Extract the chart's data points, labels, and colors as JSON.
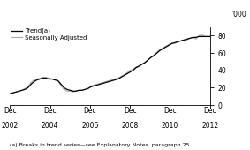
{
  "ylabel_right": "'000",
  "footnote": "(a) Breaks in trend series—see Explanatory Notes, paragraph 25.",
  "ylim": [
    0,
    90
  ],
  "yticks": [
    0,
    20,
    40,
    60,
    80
  ],
  "x_tick_labels": [
    [
      "Dec",
      "2002"
    ],
    [
      "Dec",
      "2004"
    ],
    [
      "Dec",
      "2006"
    ],
    [
      "Dec",
      "2008"
    ],
    [
      "Dec",
      "2010"
    ],
    [
      "Dec",
      "2012"
    ]
  ],
  "trend_color": "#000000",
  "seasonal_color": "#aaaaaa",
  "legend_items": [
    "Trend(a)",
    "Seasonally Adjusted"
  ],
  "trend": [
    [
      0,
      13
    ],
    [
      3,
      14
    ],
    [
      6,
      15
    ],
    [
      9,
      16
    ],
    [
      12,
      17
    ],
    [
      15,
      18
    ],
    [
      18,
      20
    ],
    [
      21,
      24
    ],
    [
      24,
      27
    ],
    [
      27,
      29
    ],
    [
      30,
      30
    ],
    [
      33,
      31
    ],
    [
      36,
      31
    ],
    [
      39,
      30
    ],
    [
      42,
      30
    ],
    [
      45,
      29
    ],
    [
      48,
      28
    ],
    [
      51,
      24
    ],
    [
      54,
      20
    ],
    [
      57,
      18
    ],
    [
      60,
      17
    ],
    [
      63,
      16
    ],
    [
      66,
      16
    ],
    [
      69,
      17
    ],
    [
      72,
      17
    ],
    [
      75,
      18
    ],
    [
      78,
      19
    ],
    [
      81,
      21
    ],
    [
      84,
      22
    ],
    [
      87,
      23
    ],
    [
      90,
      24
    ],
    [
      93,
      25
    ],
    [
      96,
      26
    ],
    [
      99,
      27
    ],
    [
      102,
      28
    ],
    [
      105,
      29
    ],
    [
      108,
      30
    ],
    [
      111,
      32
    ],
    [
      114,
      34
    ],
    [
      117,
      36
    ],
    [
      120,
      38
    ],
    [
      123,
      40
    ],
    [
      126,
      43
    ],
    [
      129,
      45
    ],
    [
      132,
      47
    ],
    [
      135,
      49
    ],
    [
      138,
      52
    ],
    [
      141,
      55
    ],
    [
      144,
      57
    ],
    [
      147,
      60
    ],
    [
      150,
      63
    ],
    [
      153,
      65
    ],
    [
      156,
      67
    ],
    [
      159,
      69
    ],
    [
      162,
      71
    ],
    [
      165,
      72
    ],
    [
      168,
      73
    ],
    [
      171,
      74
    ],
    [
      174,
      75
    ],
    [
      177,
      76
    ],
    [
      180,
      77
    ],
    [
      183,
      78
    ],
    [
      186,
      78
    ],
    [
      189,
      79
    ],
    [
      192,
      79
    ],
    [
      195,
      79
    ],
    [
      198,
      79
    ],
    [
      200,
      79
    ]
  ],
  "seasonal": [
    [
      0,
      13
    ],
    [
      3,
      14
    ],
    [
      6,
      15
    ],
    [
      9,
      16
    ],
    [
      12,
      17
    ],
    [
      15,
      19
    ],
    [
      18,
      21
    ],
    [
      21,
      26
    ],
    [
      24,
      29
    ],
    [
      27,
      30
    ],
    [
      30,
      31
    ],
    [
      33,
      32
    ],
    [
      36,
      32
    ],
    [
      39,
      31
    ],
    [
      42,
      30
    ],
    [
      45,
      29
    ],
    [
      48,
      28
    ],
    [
      51,
      22
    ],
    [
      54,
      18
    ],
    [
      57,
      16
    ],
    [
      60,
      16
    ],
    [
      63,
      15
    ],
    [
      66,
      16
    ],
    [
      69,
      17
    ],
    [
      72,
      17
    ],
    [
      75,
      18
    ],
    [
      78,
      19
    ],
    [
      81,
      22
    ],
    [
      84,
      23
    ],
    [
      87,
      24
    ],
    [
      90,
      25
    ],
    [
      93,
      26
    ],
    [
      96,
      27
    ],
    [
      99,
      28
    ],
    [
      102,
      29
    ],
    [
      105,
      30
    ],
    [
      108,
      31
    ],
    [
      111,
      33
    ],
    [
      114,
      35
    ],
    [
      117,
      37
    ],
    [
      120,
      40
    ],
    [
      123,
      41
    ],
    [
      126,
      44
    ],
    [
      129,
      44
    ],
    [
      132,
      47
    ],
    [
      135,
      49
    ],
    [
      138,
      52
    ],
    [
      141,
      55
    ],
    [
      144,
      58
    ],
    [
      147,
      61
    ],
    [
      150,
      64
    ],
    [
      153,
      66
    ],
    [
      156,
      68
    ],
    [
      159,
      70
    ],
    [
      162,
      71
    ],
    [
      165,
      71
    ],
    [
      168,
      73
    ],
    [
      171,
      74
    ],
    [
      174,
      75
    ],
    [
      177,
      75
    ],
    [
      180,
      77
    ],
    [
      183,
      78
    ],
    [
      186,
      76
    ],
    [
      189,
      80
    ],
    [
      192,
      81
    ],
    [
      195,
      79
    ],
    [
      198,
      79
    ],
    [
      200,
      79
    ]
  ],
  "x_major_ticks": [
    0,
    40,
    80,
    120,
    160,
    200
  ]
}
